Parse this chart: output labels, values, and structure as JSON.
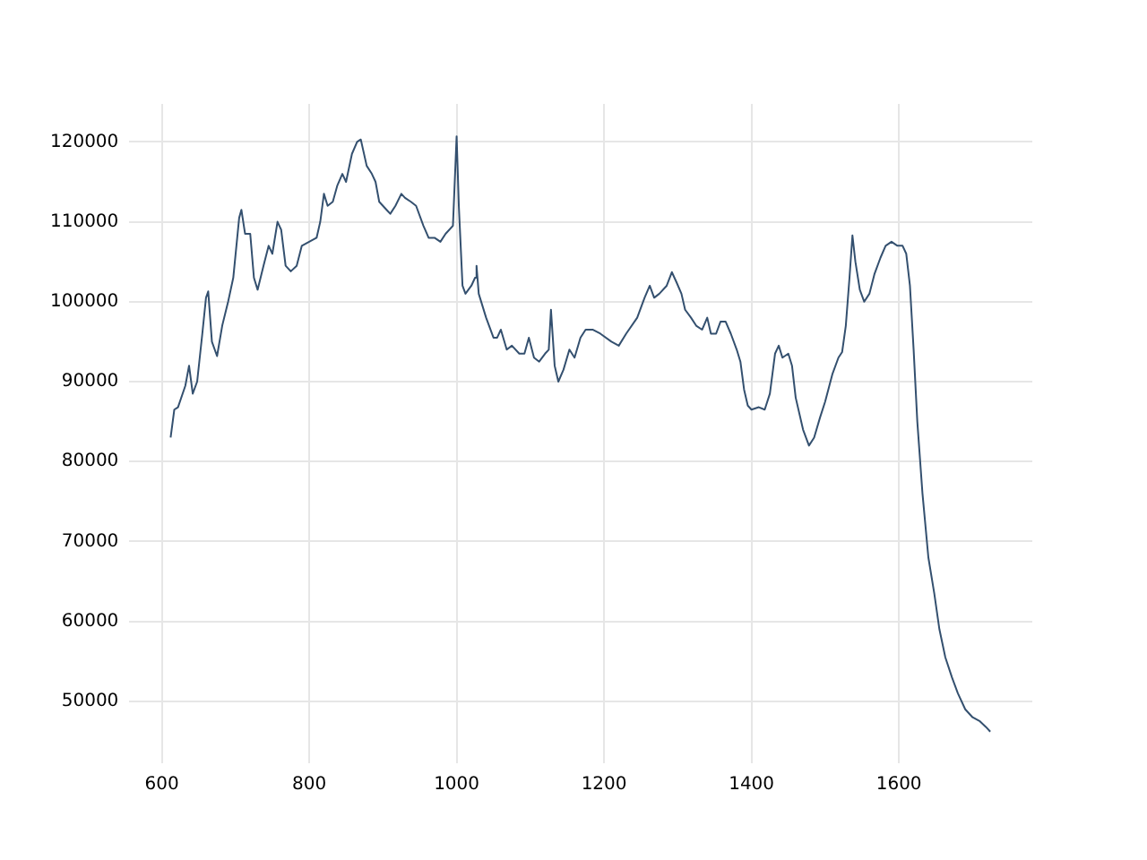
{
  "chart_data": {
    "type": "line",
    "x": [
      612,
      617,
      622,
      632,
      637,
      642,
      648,
      655,
      660,
      663,
      668,
      675,
      682,
      690,
      697,
      705,
      708,
      713,
      720,
      725,
      730,
      738,
      745,
      750,
      757,
      762,
      768,
      775,
      783,
      790,
      800,
      810,
      815,
      820,
      825,
      832,
      838,
      845,
      850,
      858,
      865,
      870,
      878,
      885,
      890,
      895,
      905,
      910,
      917,
      925,
      930,
      938,
      945,
      955,
      962,
      970,
      978,
      985,
      995,
      1000,
      1003,
      1008,
      1012,
      1020,
      1025,
      1027,
      1030,
      1040,
      1050,
      1055,
      1060,
      1068,
      1075,
      1085,
      1092,
      1098,
      1105,
      1112,
      1120,
      1125,
      1128,
      1133,
      1138,
      1145,
      1153,
      1160,
      1168,
      1175,
      1185,
      1195,
      1210,
      1220,
      1230,
      1245,
      1255,
      1262,
      1268,
      1275,
      1285,
      1292,
      1298,
      1305,
      1310,
      1318,
      1325,
      1333,
      1340,
      1345,
      1352,
      1358,
      1365,
      1372,
      1380,
      1385,
      1390,
      1395,
      1400,
      1410,
      1418,
      1425,
      1432,
      1437,
      1442,
      1450,
      1455,
      1460,
      1470,
      1478,
      1485,
      1493,
      1500,
      1510,
      1518,
      1523,
      1528,
      1533,
      1537,
      1541,
      1547,
      1553,
      1560,
      1567,
      1575,
      1582,
      1590,
      1598,
      1605,
      1610,
      1615,
      1620,
      1625,
      1632,
      1640,
      1648,
      1655,
      1663,
      1672,
      1680,
      1690,
      1700,
      1710,
      1718,
      1724
    ],
    "series": [
      {
        "color": "#34506f",
        "values": [
          83000,
          86500,
          86800,
          89500,
          92000,
          88500,
          90000,
          96000,
          100500,
          101300,
          95000,
          93200,
          97000,
          100000,
          103000,
          110500,
          111500,
          108500,
          108500,
          103000,
          101500,
          104500,
          107000,
          106000,
          110000,
          109000,
          104500,
          103800,
          104500,
          107000,
          107500,
          108000,
          110000,
          113500,
          112000,
          112500,
          114500,
          116000,
          115000,
          118500,
          120000,
          120300,
          117000,
          116000,
          115000,
          112500,
          111500,
          111000,
          112000,
          113500,
          113000,
          112500,
          112000,
          109500,
          108000,
          108000,
          107500,
          108500,
          109500,
          120700,
          112000,
          102000,
          101000,
          102000,
          103000,
          104500,
          101000,
          98000,
          95500,
          95500,
          96500,
          94000,
          94500,
          93500,
          93500,
          95500,
          93000,
          92500,
          93500,
          94000,
          99000,
          92000,
          90000,
          91500,
          94000,
          93000,
          95500,
          96500,
          96500,
          96000,
          95000,
          94500,
          96000,
          98000,
          100500,
          102000,
          100500,
          101000,
          102000,
          103700,
          102500,
          101000,
          99000,
          98000,
          97000,
          96500,
          98000,
          96000,
          96000,
          97500,
          97500,
          96000,
          94000,
          92500,
          89000,
          87000,
          86500,
          86800,
          86500,
          88500,
          93500,
          94500,
          93000,
          93500,
          92000,
          88000,
          84000,
          82000,
          83000,
          85500,
          87500,
          91000,
          93000,
          93700,
          97000,
          103000,
          108300,
          105000,
          101500,
          100000,
          101000,
          103500,
          105500,
          107000,
          107500,
          107000,
          107000,
          106000,
          102000,
          94000,
          85000,
          76000,
          68000,
          63500,
          59000,
          55500,
          53000,
          51000,
          49000,
          48000,
          47500,
          46800,
          46200
        ]
      }
    ],
    "xlim": [
      556,
      1781
    ],
    "ylim": [
      42250,
      124750
    ],
    "xticks": [
      600,
      800,
      1000,
      1200,
      1400,
      1600
    ],
    "yticks": [
      50000,
      60000,
      70000,
      80000,
      90000,
      100000,
      110000,
      120000
    ],
    "grid": true,
    "marker": "none",
    "line_style": "solid",
    "legend": false
  }
}
